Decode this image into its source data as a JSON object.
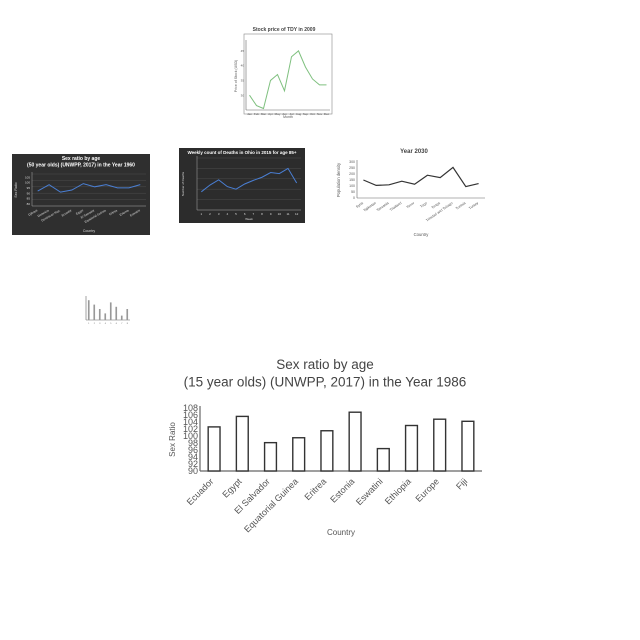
{
  "chart_data": [
    {
      "id": "stock",
      "type": "line",
      "title": "Stock price of TDY in 2009",
      "xlabel": "Month",
      "ylabel": "Price of Stock (USD)",
      "categories": [
        "Jan",
        "Feb",
        "Mar",
        "Apr",
        "May",
        "Jun",
        "Jul",
        "Aug",
        "Sep",
        "Oct",
        "Nov",
        "Dec"
      ],
      "yticks": [
        "30",
        "35",
        "40",
        "45"
      ],
      "ylim": [
        25,
        48
      ],
      "series": [
        {
          "values": [
            30,
            26.5,
            25.5,
            35,
            37,
            31.5,
            43,
            45,
            39.5,
            35.5,
            33.5,
            33.5
          ]
        }
      ],
      "color": "#7fc07f"
    },
    {
      "id": "sexratio1960",
      "type": "line",
      "title": "Sex ratio by age (50 year olds) (UNWPP, 2017) in the Year 1960",
      "xlabel": "Country",
      "ylabel": "Sex Ratio",
      "categories": [
        "Djibouti",
        "Dominica",
        "Dominican Rep.",
        "Ecuador",
        "Egypt",
        "El Salvador",
        "Equatorial Guinea",
        "Eritrea",
        "Estonia",
        "Eswatini"
      ],
      "yticks": [
        "80",
        "85",
        "90",
        "95",
        "100",
        "105"
      ],
      "ylim": [
        78,
        108
      ],
      "series": [
        {
          "values": [
            92,
            98,
            91,
            93,
            99,
            96,
            98,
            95,
            95,
            98
          ]
        }
      ],
      "color": "#4a7fd4"
    },
    {
      "id": "deaths",
      "type": "line",
      "title": "Weekly count of Deaths in Ohio in 2015 for age 85+",
      "xlabel": "Week",
      "ylabel": "Number of Deaths",
      "categories": [
        "1",
        "2",
        "3",
        "4",
        "5",
        "6",
        "7",
        "8",
        "9",
        "10",
        "11",
        "12"
      ],
      "ylim": [
        0,
        100
      ],
      "series": [
        {
          "values": [
            35,
            48,
            58,
            45,
            40,
            50,
            57,
            63,
            72,
            70,
            80,
            52
          ]
        }
      ],
      "color": "#4a7fd4"
    },
    {
      "id": "year2030",
      "type": "line",
      "title": "Year 2030",
      "xlabel": "Country",
      "ylabel": "Population density",
      "categories": [
        "Syria",
        "Tajikistan",
        "Tanzania",
        "Thailand",
        "Timor",
        "Togo",
        "Tonga",
        "Trinidad and Tobago",
        "Tunisia",
        "Turkey"
      ],
      "yticks": [
        "0",
        "50",
        "100",
        "150",
        "200",
        "250",
        "300"
      ],
      "ylim": [
        0,
        300
      ],
      "series": [
        {
          "values": [
            150,
            105,
            110,
            140,
            115,
            190,
            170,
            255,
            95,
            120
          ]
        }
      ],
      "color": "#333333"
    },
    {
      "id": "tiny",
      "type": "bar",
      "title": "",
      "categories": [
        "1",
        "2",
        "3",
        "4",
        "5",
        "6",
        "7",
        "8"
      ],
      "ylim": [
        0,
        10
      ],
      "series": [
        {
          "values": [
            9,
            7,
            5,
            3,
            8,
            6,
            2,
            5
          ]
        }
      ],
      "color": "#999999"
    },
    {
      "id": "main",
      "type": "bar",
      "title": "Sex ratio by age (15 year olds) (UNWPP, 2017) in the Year 1986",
      "xlabel": "Country",
      "ylabel": "Sex Ratio",
      "categories": [
        "Ecuador",
        "Egypt",
        "El Salvador",
        "Equatorial Guinea",
        "Eritrea",
        "Estonia",
        "Eswatini",
        "Ethiopia",
        "Europe",
        "Fiji"
      ],
      "yticks": [
        "90",
        "92",
        "94",
        "96",
        "98",
        "100",
        "102",
        "104",
        "106",
        "108"
      ],
      "ylim": [
        90,
        108
      ],
      "series": [
        {
          "values": [
            102.6,
            105.6,
            98.1,
            99.5,
            101.5,
            106.8,
            96.4,
            103,
            104.8,
            104.2
          ]
        }
      ],
      "bar_fill": "#ffffff",
      "bar_stroke": "#333333"
    }
  ]
}
